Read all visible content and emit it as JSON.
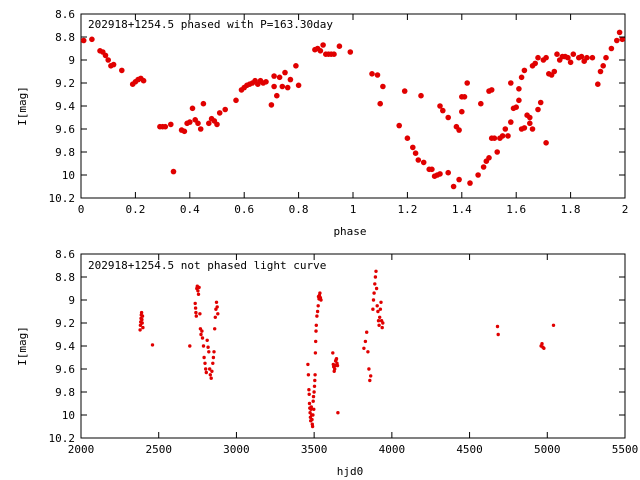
{
  "chart_data": [
    {
      "type": "scatter",
      "title": "202918+1254.5 phased with P=163.30day",
      "xlabel": "phase",
      "ylabel": "I[mag]",
      "xlim": [
        0,
        2
      ],
      "ylim": [
        10.2,
        8.6
      ],
      "y_inverted": true,
      "grid": false,
      "marker_color": "#e00000",
      "x_ticks": [
        "0",
        "0.2",
        "0.4",
        "0.6",
        "0.8",
        "1",
        "1.2",
        "1.4",
        "1.6",
        "1.8",
        "2"
      ],
      "y_ticks": [
        "8.6",
        "8.8",
        "9",
        "9.2",
        "9.4",
        "9.6",
        "9.8",
        "10",
        "10.2"
      ],
      "points": [
        [
          0.01,
          8.83
        ],
        [
          0.04,
          8.82
        ],
        [
          0.07,
          8.92
        ],
        [
          0.08,
          8.93
        ],
        [
          0.09,
          8.96
        ],
        [
          0.1,
          9.0
        ],
        [
          0.11,
          9.05
        ],
        [
          0.12,
          9.04
        ],
        [
          0.15,
          9.09
        ],
        [
          0.19,
          9.21
        ],
        [
          0.2,
          9.19
        ],
        [
          0.21,
          9.17
        ],
        [
          0.22,
          9.16
        ],
        [
          0.23,
          9.18
        ],
        [
          0.29,
          9.58
        ],
        [
          0.3,
          9.58
        ],
        [
          0.31,
          9.58
        ],
        [
          0.33,
          9.56
        ],
        [
          0.34,
          9.97
        ],
        [
          0.37,
          9.61
        ],
        [
          0.38,
          9.62
        ],
        [
          0.39,
          9.55
        ],
        [
          0.4,
          9.54
        ],
        [
          0.41,
          9.42
        ],
        [
          0.42,
          9.52
        ],
        [
          0.43,
          9.55
        ],
        [
          0.44,
          9.6
        ],
        [
          0.45,
          9.38
        ],
        [
          0.47,
          9.55
        ],
        [
          0.48,
          9.51
        ],
        [
          0.49,
          9.53
        ],
        [
          0.5,
          9.56
        ],
        [
          0.51,
          9.46
        ],
        [
          0.53,
          9.43
        ],
        [
          0.57,
          9.35
        ],
        [
          0.59,
          9.26
        ],
        [
          0.6,
          9.24
        ],
        [
          0.61,
          9.22
        ],
        [
          0.62,
          9.21
        ],
        [
          0.63,
          9.2
        ],
        [
          0.64,
          9.18
        ],
        [
          0.65,
          9.21
        ],
        [
          0.66,
          9.18
        ],
        [
          0.67,
          9.2
        ],
        [
          0.68,
          9.19
        ],
        [
          0.7,
          9.39
        ],
        [
          0.71,
          9.23
        ],
        [
          0.71,
          9.14
        ],
        [
          0.72,
          9.31
        ],
        [
          0.73,
          9.15
        ],
        [
          0.74,
          9.23
        ],
        [
          0.75,
          9.11
        ],
        [
          0.76,
          9.24
        ],
        [
          0.77,
          9.17
        ],
        [
          0.79,
          9.05
        ],
        [
          0.8,
          9.22
        ],
        [
          0.86,
          8.91
        ],
        [
          0.87,
          8.9
        ],
        [
          0.88,
          8.92
        ],
        [
          0.89,
          8.87
        ],
        [
          0.9,
          8.95
        ],
        [
          0.91,
          8.95
        ],
        [
          0.92,
          8.95
        ],
        [
          0.93,
          8.95
        ],
        [
          0.95,
          8.88
        ],
        [
          0.99,
          8.93
        ],
        [
          1.07,
          9.12
        ],
        [
          1.09,
          9.13
        ],
        [
          1.1,
          9.38
        ],
        [
          1.11,
          9.23
        ],
        [
          1.17,
          9.57
        ],
        [
          1.19,
          9.27
        ],
        [
          1.2,
          9.68
        ],
        [
          1.22,
          9.76
        ],
        [
          1.23,
          9.81
        ],
        [
          1.24,
          9.87
        ],
        [
          1.25,
          9.31
        ],
        [
          1.26,
          9.89
        ],
        [
          1.28,
          9.95
        ],
        [
          1.29,
          9.95
        ],
        [
          1.3,
          10.01
        ],
        [
          1.31,
          10.0
        ],
        [
          1.32,
          9.99
        ],
        [
          1.32,
          9.4
        ],
        [
          1.33,
          9.44
        ],
        [
          1.35,
          9.98
        ],
        [
          1.35,
          9.5
        ],
        [
          1.37,
          10.1
        ],
        [
          1.38,
          9.58
        ],
        [
          1.39,
          10.04
        ],
        [
          1.39,
          9.61
        ],
        [
          1.4,
          9.45
        ],
        [
          1.41,
          9.32
        ],
        [
          1.43,
          10.07
        ],
        [
          1.46,
          10.0
        ],
        [
          1.47,
          9.38
        ],
        [
          1.48,
          9.93
        ],
        [
          1.49,
          9.88
        ],
        [
          1.5,
          9.85
        ],
        [
          1.5,
          9.27
        ],
        [
          1.51,
          9.68
        ],
        [
          1.51,
          9.26
        ],
        [
          1.52,
          9.68
        ],
        [
          1.53,
          9.8
        ],
        [
          1.54,
          9.68
        ],
        [
          1.55,
          9.66
        ],
        [
          1.56,
          9.6
        ],
        [
          1.57,
          9.66
        ],
        [
          1.58,
          9.54
        ],
        [
          1.58,
          9.2
        ],
        [
          1.59,
          9.42
        ],
        [
          1.6,
          9.41
        ],
        [
          1.61,
          9.35
        ],
        [
          1.61,
          9.25
        ],
        [
          1.62,
          9.15
        ],
        [
          1.63,
          9.09
        ],
        [
          1.63,
          9.59
        ],
        [
          1.64,
          9.48
        ],
        [
          1.65,
          9.5
        ],
        [
          1.66,
          9.05
        ],
        [
          1.67,
          9.03
        ],
        [
          1.68,
          8.98
        ],
        [
          1.68,
          9.43
        ],
        [
          1.69,
          9.37
        ],
        [
          1.7,
          9.0
        ],
        [
          1.71,
          8.98
        ],
        [
          1.72,
          9.12
        ],
        [
          1.73,
          9.13
        ],
        [
          1.74,
          9.1
        ],
        [
          1.75,
          8.95
        ],
        [
          1.76,
          9.0
        ],
        [
          1.77,
          8.97
        ],
        [
          1.78,
          8.97
        ],
        [
          1.79,
          8.98
        ],
        [
          1.8,
          9.02
        ],
        [
          1.81,
          8.95
        ],
        [
          1.83,
          8.98
        ],
        [
          1.84,
          8.97
        ],
        [
          1.85,
          9.01
        ],
        [
          1.86,
          8.98
        ],
        [
          1.88,
          8.98
        ],
        [
          1.9,
          9.21
        ],
        [
          1.91,
          9.1
        ],
        [
          1.92,
          9.05
        ],
        [
          1.93,
          8.98
        ],
        [
          1.95,
          8.9
        ],
        [
          1.97,
          8.83
        ],
        [
          1.98,
          8.76
        ],
        [
          1.99,
          8.82
        ],
        [
          1.62,
          9.6
        ],
        [
          1.65,
          9.55
        ],
        [
          1.66,
          9.6
        ],
        [
          1.71,
          9.72
        ],
        [
          1.42,
          9.2
        ],
        [
          1.4,
          9.32
        ]
      ]
    },
    {
      "type": "scatter",
      "title": "202918+1254.5 not phased light curve",
      "xlabel": "hjd0",
      "ylabel": "I[mag]",
      "xlim": [
        2000,
        5500
      ],
      "ylim": [
        10.2,
        8.6
      ],
      "y_inverted": true,
      "grid": false,
      "marker_color": "#e00000",
      "x_ticks": [
        "2000",
        "2500",
        "3000",
        "3500",
        "4000",
        "4500",
        "5000",
        "5500"
      ],
      "y_ticks": [
        "8.6",
        "8.8",
        "9",
        "9.2",
        "9.4",
        "9.6",
        "9.8",
        "10",
        "10.2"
      ],
      "points": [
        [
          2380,
          9.26
        ],
        [
          2382,
          9.22
        ],
        [
          2384,
          9.19
        ],
        [
          2386,
          9.16
        ],
        [
          2388,
          9.13
        ],
        [
          2390,
          9.11
        ],
        [
          2392,
          9.17
        ],
        [
          2394,
          9.2
        ],
        [
          2396,
          9.14
        ],
        [
          2398,
          9.24
        ],
        [
          2460,
          9.39
        ],
        [
          2700,
          9.4
        ],
        [
          2735,
          9.03
        ],
        [
          2737,
          9.07
        ],
        [
          2739,
          9.11
        ],
        [
          2742,
          9.14
        ],
        [
          2745,
          8.9
        ],
        [
          2748,
          8.88
        ],
        [
          2752,
          8.92
        ],
        [
          2756,
          8.95
        ],
        [
          2760,
          8.89
        ],
        [
          2765,
          9.12
        ],
        [
          2768,
          9.25
        ],
        [
          2772,
          9.3
        ],
        [
          2778,
          9.27
        ],
        [
          2782,
          9.33
        ],
        [
          2788,
          9.4
        ],
        [
          2792,
          9.5
        ],
        [
          2798,
          9.55
        ],
        [
          2802,
          9.6
        ],
        [
          2806,
          9.63
        ],
        [
          2812,
          9.35
        ],
        [
          2818,
          9.41
        ],
        [
          2822,
          9.45
        ],
        [
          2828,
          9.6
        ],
        [
          2832,
          9.65
        ],
        [
          2838,
          9.68
        ],
        [
          2842,
          9.62
        ],
        [
          2848,
          9.55
        ],
        [
          2852,
          9.5
        ],
        [
          2856,
          9.45
        ],
        [
          2860,
          9.25
        ],
        [
          2864,
          9.15
        ],
        [
          2868,
          9.08
        ],
        [
          2872,
          9.02
        ],
        [
          2876,
          9.06
        ],
        [
          2880,
          9.12
        ],
        [
          3460,
          9.56
        ],
        [
          3463,
          9.65
        ],
        [
          3466,
          9.78
        ],
        [
          3468,
          9.82
        ],
        [
          3470,
          9.9
        ],
        [
          3472,
          9.94
        ],
        [
          3474,
          9.98
        ],
        [
          3476,
          10.02
        ],
        [
          3478,
          10.05
        ],
        [
          3480,
          9.95
        ],
        [
          3482,
          9.93
        ],
        [
          3484,
          10.0
        ],
        [
          3486,
          10.04
        ],
        [
          3488,
          10.08
        ],
        [
          3490,
          10.1
        ],
        [
          3492,
          10.0
        ],
        [
          3494,
          9.88
        ],
        [
          3496,
          9.84
        ],
        [
          3498,
          9.95
        ],
        [
          3500,
          9.8
        ],
        [
          3502,
          9.75
        ],
        [
          3504,
          9.7
        ],
        [
          3506,
          9.65
        ],
        [
          3508,
          9.46
        ],
        [
          3510,
          9.36
        ],
        [
          3512,
          9.27
        ],
        [
          3514,
          9.22
        ],
        [
          3518,
          9.14
        ],
        [
          3522,
          9.1
        ],
        [
          3526,
          9.05
        ],
        [
          3528,
          8.97
        ],
        [
          3531,
          8.99
        ],
        [
          3534,
          8.96
        ],
        [
          3537,
          8.94
        ],
        [
          3540,
          8.98
        ],
        [
          3544,
          9.0
        ],
        [
          3620,
          9.46
        ],
        [
          3623,
          9.56
        ],
        [
          3626,
          9.58
        ],
        [
          3629,
          9.62
        ],
        [
          3632,
          9.6
        ],
        [
          3635,
          9.57
        ],
        [
          3638,
          9.53
        ],
        [
          3641,
          9.52
        ],
        [
          3644,
          9.51
        ],
        [
          3647,
          9.55
        ],
        [
          3650,
          9.57
        ],
        [
          3653,
          9.98
        ],
        [
          3820,
          9.42
        ],
        [
          3830,
          9.36
        ],
        [
          3838,
          9.28
        ],
        [
          3846,
          9.45
        ],
        [
          3852,
          9.6
        ],
        [
          3858,
          9.7
        ],
        [
          3864,
          9.66
        ],
        [
          3878,
          9.08
        ],
        [
          3882,
          9.0
        ],
        [
          3886,
          8.94
        ],
        [
          3890,
          8.86
        ],
        [
          3894,
          8.8
        ],
        [
          3898,
          8.75
        ],
        [
          3902,
          8.9
        ],
        [
          3906,
          9.05
        ],
        [
          3910,
          9.1
        ],
        [
          3914,
          9.18
        ],
        [
          3918,
          9.22
        ],
        [
          3922,
          9.15
        ],
        [
          3926,
          9.08
        ],
        [
          3930,
          9.02
        ],
        [
          3934,
          9.18
        ],
        [
          3938,
          9.24
        ],
        [
          3942,
          9.2
        ],
        [
          4680,
          9.23
        ],
        [
          4684,
          9.3
        ],
        [
          4960,
          9.4
        ],
        [
          4966,
          9.38
        ],
        [
          4972,
          9.41
        ],
        [
          4978,
          9.42
        ],
        [
          5040,
          9.22
        ]
      ]
    }
  ]
}
